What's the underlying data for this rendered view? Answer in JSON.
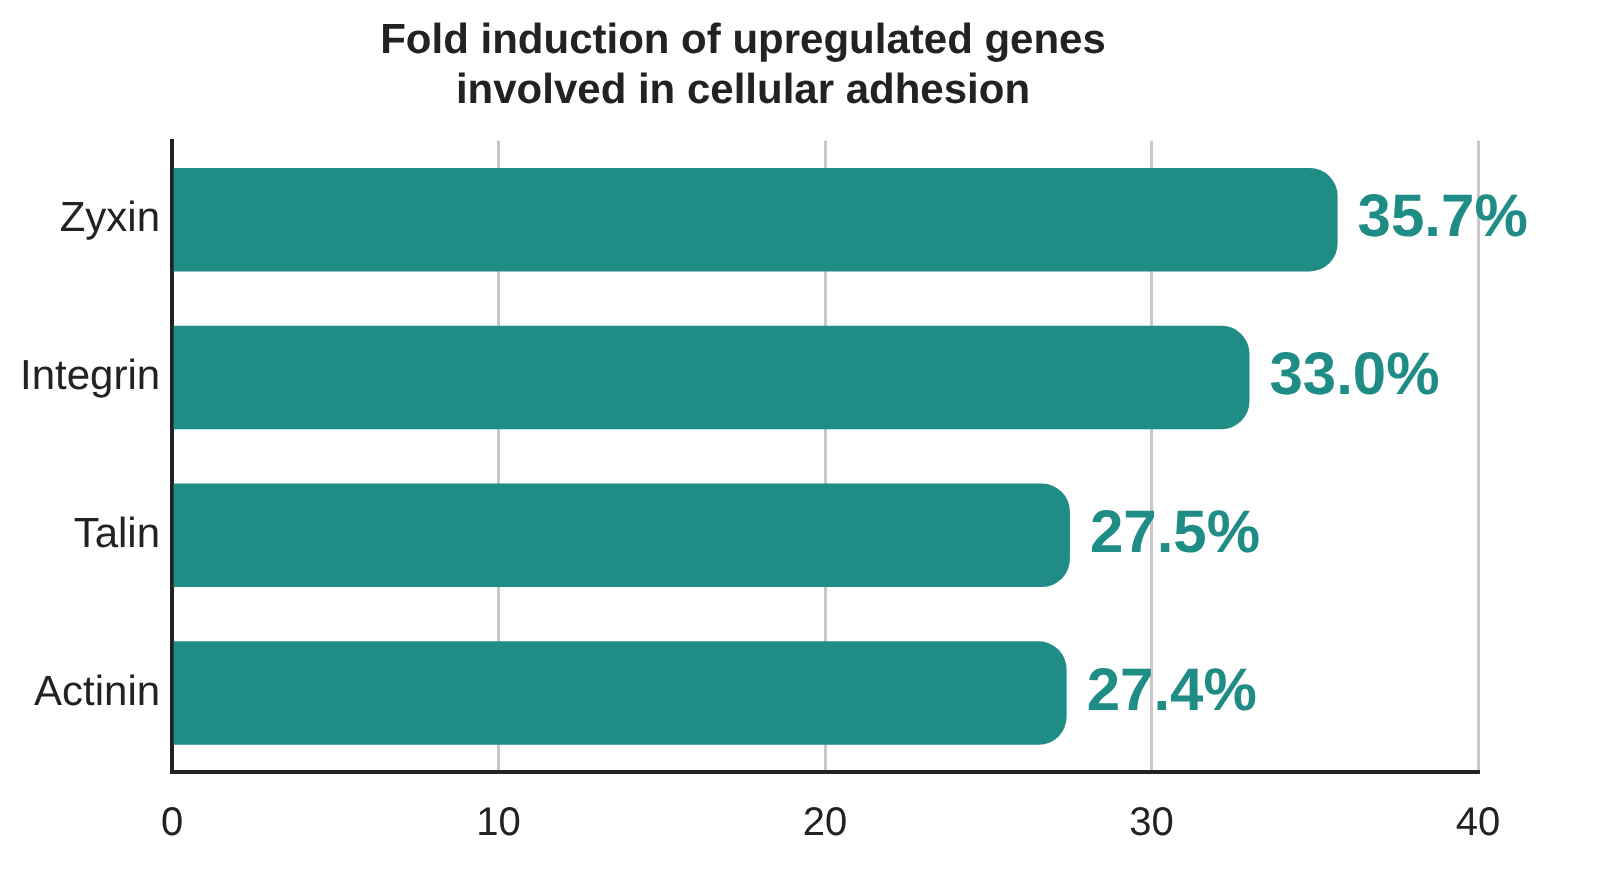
{
  "chart_data": {
    "type": "bar",
    "orientation": "horizontal",
    "title": "Fold induction of upregulated genes\ninvolved in cellular adhesion",
    "categories": [
      "Zyxin",
      "Integrin",
      "Talin",
      "Actinin"
    ],
    "values": [
      35.7,
      33.0,
      27.5,
      27.4
    ],
    "value_labels": [
      "35.7%",
      "33.0%",
      "27.5%",
      "27.4%"
    ],
    "color": "#1f8c86",
    "xlim": [
      0,
      40
    ],
    "xticks": [
      0,
      10,
      20,
      30,
      40
    ],
    "grid": "x",
    "legend": false
  }
}
